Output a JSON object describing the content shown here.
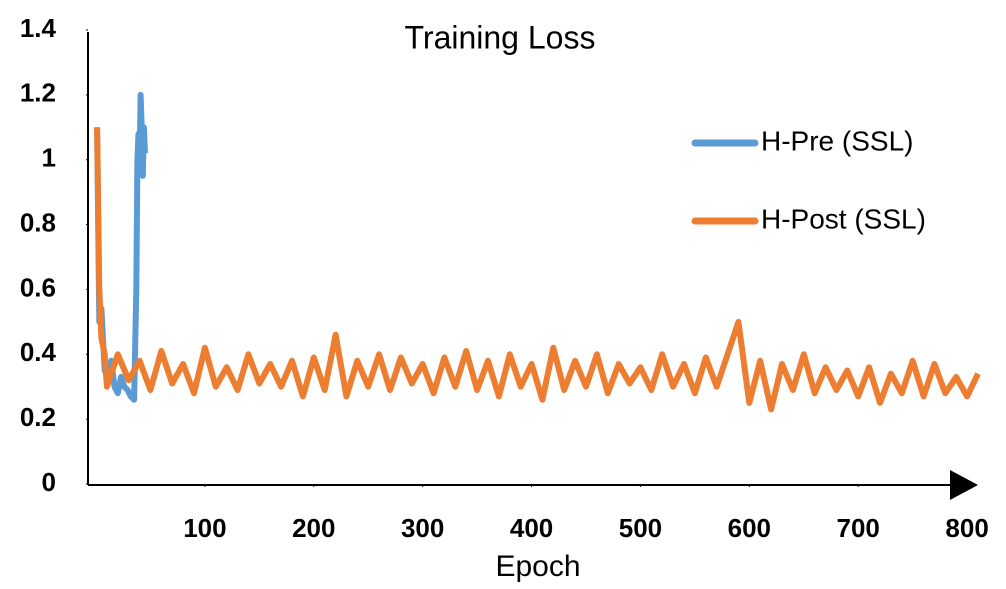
{
  "chart_data": {
    "type": "line",
    "title": "Training Loss",
    "x_label": "Epoch",
    "xlim": [
      0,
      810
    ],
    "ylim": [
      0,
      1.4
    ],
    "xticks": [
      100,
      200,
      300,
      400,
      500,
      600,
      700,
      800
    ],
    "yticks": [
      0,
      0.2,
      0.4,
      0.6,
      0.8,
      1,
      1.2,
      1.4
    ],
    "legend": "upper right",
    "series": [
      {
        "name": "H-Pre (SSL)",
        "color": "#5b9bd5",
        "x": [
          1,
          3,
          5,
          8,
          11,
          14,
          17,
          20,
          23,
          26,
          29,
          32,
          35,
          37,
          38,
          39,
          40,
          41,
          42,
          43,
          44,
          45
        ],
        "values": [
          1.1,
          0.5,
          0.54,
          0.35,
          0.33,
          0.38,
          0.3,
          0.28,
          0.33,
          0.3,
          0.29,
          0.27,
          0.26,
          0.6,
          1.0,
          1.08,
          0.98,
          1.2,
          1.1,
          0.95,
          1.1,
          1.02
        ]
      },
      {
        "name": "H-Post (SSL)",
        "color": "#ed7d31",
        "x": [
          1,
          3,
          5,
          8,
          10,
          20,
          30,
          40,
          50,
          60,
          70,
          80,
          90,
          100,
          110,
          120,
          130,
          140,
          150,
          160,
          170,
          180,
          190,
          200,
          210,
          220,
          230,
          240,
          250,
          260,
          270,
          280,
          290,
          300,
          310,
          320,
          330,
          340,
          350,
          360,
          370,
          380,
          390,
          400,
          410,
          420,
          430,
          440,
          450,
          460,
          470,
          480,
          490,
          500,
          510,
          520,
          530,
          540,
          550,
          560,
          570,
          580,
          590,
          600,
          610,
          620,
          630,
          640,
          650,
          660,
          670,
          680,
          690,
          700,
          710,
          720,
          730,
          740,
          750,
          760,
          770,
          780,
          790,
          800,
          810
        ],
        "values": [
          1.1,
          0.6,
          0.45,
          0.4,
          0.3,
          0.4,
          0.32,
          0.38,
          0.29,
          0.41,
          0.31,
          0.37,
          0.28,
          0.42,
          0.3,
          0.36,
          0.29,
          0.4,
          0.31,
          0.37,
          0.3,
          0.38,
          0.27,
          0.39,
          0.29,
          0.46,
          0.27,
          0.38,
          0.3,
          0.4,
          0.29,
          0.39,
          0.31,
          0.37,
          0.28,
          0.39,
          0.3,
          0.41,
          0.29,
          0.38,
          0.27,
          0.4,
          0.3,
          0.37,
          0.26,
          0.42,
          0.29,
          0.38,
          0.3,
          0.4,
          0.28,
          0.37,
          0.31,
          0.36,
          0.29,
          0.4,
          0.3,
          0.37,
          0.28,
          0.39,
          0.3,
          0.4,
          0.5,
          0.25,
          0.38,
          0.23,
          0.37,
          0.29,
          0.4,
          0.28,
          0.36,
          0.29,
          0.35,
          0.27,
          0.36,
          0.25,
          0.34,
          0.28,
          0.38,
          0.27,
          0.37,
          0.28,
          0.33,
          0.27,
          0.34
        ]
      }
    ]
  }
}
